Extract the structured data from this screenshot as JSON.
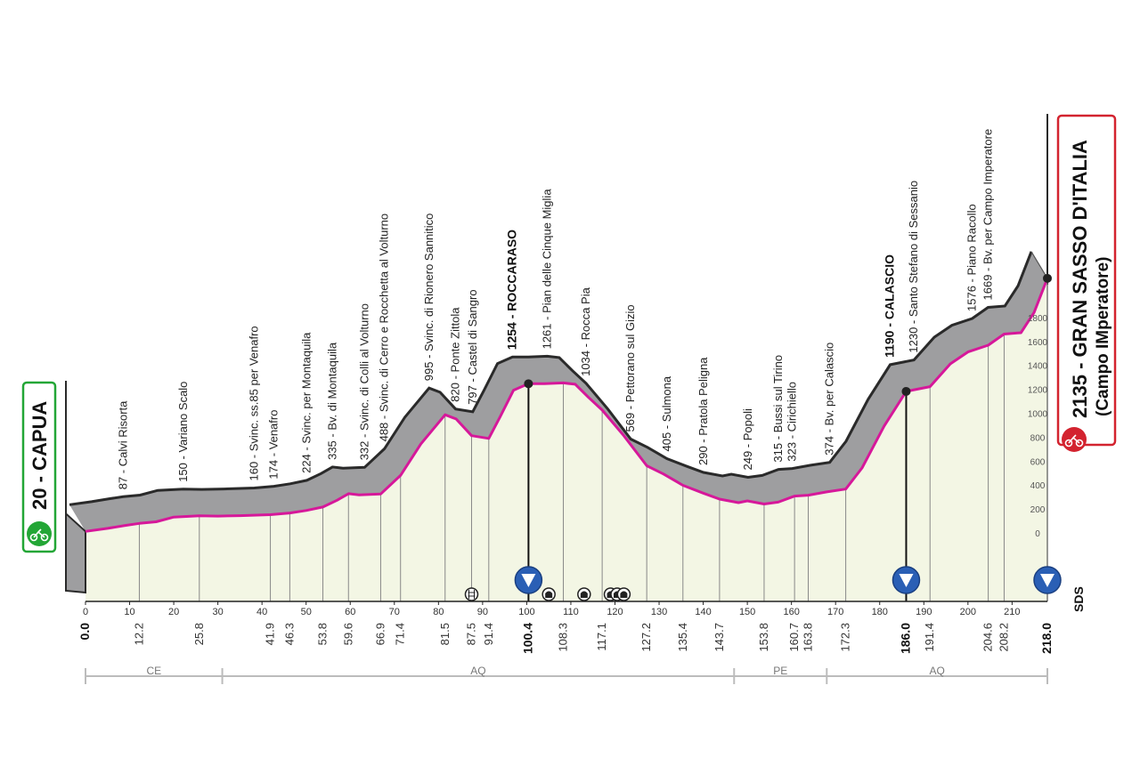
{
  "chart_data": {
    "type": "area",
    "x_range_km": [
      0,
      218
    ],
    "y_range_m": [
      0,
      2200
    ],
    "km_ticks": [
      0,
      10,
      20,
      30,
      40,
      50,
      60,
      70,
      80,
      90,
      100,
      110,
      120,
      130,
      140,
      150,
      160,
      170,
      180,
      190,
      200,
      210
    ],
    "altitude_ticks": [
      0,
      200,
      400,
      600,
      800,
      1000,
      1200,
      1400,
      1600,
      1800
    ],
    "profile": [
      {
        "km": 0.0,
        "alt": 20
      },
      {
        "km": 5,
        "alt": 45
      },
      {
        "km": 9,
        "alt": 70
      },
      {
        "km": 12.2,
        "alt": 87
      },
      {
        "km": 16,
        "alt": 100
      },
      {
        "km": 20,
        "alt": 140
      },
      {
        "km": 25.8,
        "alt": 150
      },
      {
        "km": 30,
        "alt": 148
      },
      {
        "km": 35,
        "alt": 152
      },
      {
        "km": 41.9,
        "alt": 160
      },
      {
        "km": 46.3,
        "alt": 174
      },
      {
        "km": 50,
        "alt": 195
      },
      {
        "km": 53.8,
        "alt": 224
      },
      {
        "km": 57,
        "alt": 280
      },
      {
        "km": 59.6,
        "alt": 335
      },
      {
        "km": 62,
        "alt": 325
      },
      {
        "km": 66.9,
        "alt": 332
      },
      {
        "km": 71.4,
        "alt": 488
      },
      {
        "km": 76,
        "alt": 750
      },
      {
        "km": 81.5,
        "alt": 995
      },
      {
        "km": 84,
        "alt": 960
      },
      {
        "km": 87.5,
        "alt": 820
      },
      {
        "km": 91.4,
        "alt": 797
      },
      {
        "km": 94,
        "alt": 980
      },
      {
        "km": 97,
        "alt": 1200
      },
      {
        "km": 100.4,
        "alt": 1254
      },
      {
        "km": 104,
        "alt": 1255
      },
      {
        "km": 108.3,
        "alt": 1261
      },
      {
        "km": 111,
        "alt": 1250
      },
      {
        "km": 114,
        "alt": 1140
      },
      {
        "km": 117.1,
        "alt": 1034
      },
      {
        "km": 122,
        "alt": 820
      },
      {
        "km": 127.2,
        "alt": 569
      },
      {
        "km": 131,
        "alt": 500
      },
      {
        "km": 135.4,
        "alt": 405
      },
      {
        "km": 140,
        "alt": 340
      },
      {
        "km": 143.7,
        "alt": 290
      },
      {
        "km": 148,
        "alt": 260
      },
      {
        "km": 150,
        "alt": 275
      },
      {
        "km": 153.8,
        "alt": 249
      },
      {
        "km": 157,
        "alt": 265
      },
      {
        "km": 160.7,
        "alt": 315
      },
      {
        "km": 163.8,
        "alt": 323
      },
      {
        "km": 168,
        "alt": 350
      },
      {
        "km": 172.3,
        "alt": 374
      },
      {
        "km": 176,
        "alt": 550
      },
      {
        "km": 181,
        "alt": 900
      },
      {
        "km": 186.0,
        "alt": 1190
      },
      {
        "km": 191.4,
        "alt": 1230
      },
      {
        "km": 196,
        "alt": 1420
      },
      {
        "km": 200,
        "alt": 1520
      },
      {
        "km": 204.6,
        "alt": 1576
      },
      {
        "km": 208.2,
        "alt": 1669
      },
      {
        "km": 212,
        "alt": 1680
      },
      {
        "km": 215,
        "alt": 1850
      },
      {
        "km": 218.0,
        "alt": 2135
      }
    ],
    "distance_labels": [
      {
        "km": 0.0,
        "text": "0.0",
        "bold": true
      },
      {
        "km": 12.2,
        "text": "12.2",
        "bold": false
      },
      {
        "km": 25.8,
        "text": "25.8",
        "bold": false
      },
      {
        "km": 41.9,
        "text": "41.9",
        "bold": false
      },
      {
        "km": 46.3,
        "text": "46.3",
        "bold": false
      },
      {
        "km": 53.8,
        "text": "53.8",
        "bold": false
      },
      {
        "km": 59.6,
        "text": "59.6",
        "bold": false
      },
      {
        "km": 66.9,
        "text": "66.9",
        "bold": false
      },
      {
        "km": 71.4,
        "text": "71.4",
        "bold": false
      },
      {
        "km": 81.5,
        "text": "81.5",
        "bold": false
      },
      {
        "km": 87.5,
        "text": "87.5",
        "bold": false
      },
      {
        "km": 91.4,
        "text": "91.4",
        "bold": false
      },
      {
        "km": 100.4,
        "text": "100.4",
        "bold": true
      },
      {
        "km": 108.3,
        "text": "108.3",
        "bold": false
      },
      {
        "km": 117.1,
        "text": "117.1",
        "bold": false
      },
      {
        "km": 127.2,
        "text": "127.2",
        "bold": false
      },
      {
        "km": 135.4,
        "text": "135.4",
        "bold": false
      },
      {
        "km": 143.7,
        "text": "143.7",
        "bold": false
      },
      {
        "km": 153.8,
        "text": "153.8",
        "bold": false
      },
      {
        "km": 160.7,
        "text": "160.7",
        "bold": false
      },
      {
        "km": 163.8,
        "text": "163.8",
        "bold": false
      },
      {
        "km": 172.3,
        "text": "172.3",
        "bold": false
      },
      {
        "km": 186.0,
        "text": "186.0",
        "bold": true
      },
      {
        "km": 191.4,
        "text": "191.4",
        "bold": false
      },
      {
        "km": 204.6,
        "text": "204.6",
        "bold": false
      },
      {
        "km": 208.2,
        "text": "208.2",
        "bold": false
      },
      {
        "km": 218.0,
        "text": "218.0",
        "bold": true
      }
    ],
    "waypoints": [
      {
        "km": 12.2,
        "alt": 87,
        "text": "87 - Calvi Risorta",
        "bold": false
      },
      {
        "km": 25.8,
        "alt": 150,
        "text": "150 - Variano Scalo",
        "bold": false
      },
      {
        "km": 41.9,
        "alt": 160,
        "text": "160 - Svinc. ss.85 per Venafro",
        "bold": false
      },
      {
        "km": 46.3,
        "alt": 174,
        "text": "174 - Venafro",
        "bold": false
      },
      {
        "km": 53.8,
        "alt": 224,
        "text": "224 - Svinc. per Montaquila",
        "bold": false
      },
      {
        "km": 59.6,
        "alt": 335,
        "text": "335 - Bv. di Montaquila",
        "bold": false
      },
      {
        "km": 66.9,
        "alt": 332,
        "text": "332 - Svinc. di Colli al Volturno",
        "bold": false
      },
      {
        "km": 71.4,
        "alt": 488,
        "text": "488 - Svinc. di Cerro e Rocchetta al Volturno",
        "bold": false
      },
      {
        "km": 81.5,
        "alt": 995,
        "text": "995 - Svinc. di Rionero Sannitico",
        "bold": false
      },
      {
        "km": 87.5,
        "alt": 820,
        "text": "820 - Ponte Zittola",
        "bold": false
      },
      {
        "km": 91.4,
        "alt": 797,
        "text": "797 - Castel di Sangro",
        "bold": false
      },
      {
        "km": 100.4,
        "alt": 1254,
        "text": "1254 - ROCCARASO",
        "bold": true
      },
      {
        "km": 108.3,
        "alt": 1261,
        "text": "1261 - Pian delle Cinque Miglia",
        "bold": false
      },
      {
        "km": 117.1,
        "alt": 1034,
        "text": "1034 - Rocca Pia",
        "bold": false
      },
      {
        "km": 127.2,
        "alt": 569,
        "text": "569 - Pettorano sul Gizio",
        "bold": false
      },
      {
        "km": 135.4,
        "alt": 405,
        "text": "405 - Sulmona",
        "bold": false
      },
      {
        "km": 143.7,
        "alt": 290,
        "text": "290 - Pratola Peligna",
        "bold": false
      },
      {
        "km": 153.8,
        "alt": 249,
        "text": "249 - Popoli",
        "bold": false
      },
      {
        "km": 160.7,
        "alt": 315,
        "text": "315 - Bussi sul Tirino",
        "bold": false
      },
      {
        "km": 163.8,
        "alt": 323,
        "text": "323 - Cirichiello",
        "bold": false
      },
      {
        "km": 172.3,
        "alt": 374,
        "text": "374 - Bv. per Calascio",
        "bold": false
      },
      {
        "km": 186.0,
        "alt": 1190,
        "text": "1190 - CALASCIO",
        "bold": true
      },
      {
        "km": 191.4,
        "alt": 1230,
        "text": "1230 - Santo Stefano di Sessanio",
        "bold": false
      },
      {
        "km": 204.6,
        "alt": 1576,
        "text": "1576 - Piano Racollo",
        "bold": false
      },
      {
        "km": 208.2,
        "alt": 1669,
        "text": "1669 - Bv. per Campo Imperatore",
        "bold": false
      }
    ],
    "provinces": [
      {
        "code": "CE",
        "from_km": 0,
        "to_km": 31
      },
      {
        "code": "AQ",
        "from_km": 31,
        "to_km": 147
      },
      {
        "code": "PE",
        "from_km": 147,
        "to_km": 168
      },
      {
        "code": "AQ",
        "from_km": 168,
        "to_km": 218
      }
    ],
    "markers": {
      "sprints_km": [
        100.4,
        186.0,
        218.0
      ],
      "tunnels_km": [
        87.5
      ],
      "galleries_km": [
        105,
        113,
        119,
        120.5,
        122
      ]
    },
    "start": {
      "alt_text": "20",
      "name": "CAPUA",
      "alt": 20
    },
    "finish": {
      "alt_text": "2135",
      "name": "GRAN SASSO D'ITALIA",
      "subtitle": "(Campo IMperatore)",
      "alt": 2135
    },
    "side_text": "SDS"
  },
  "colors": {
    "profile_fill": "#f3f6e4",
    "road_gray": "#9e9ea0",
    "road_outline": "#2a2a2a",
    "pink_line": "#d6189a",
    "start_green": "#23a636",
    "finish_red": "#d3232f",
    "sprint_blue": "#2a5fb5",
    "province_line": "#bcbcbc"
  }
}
